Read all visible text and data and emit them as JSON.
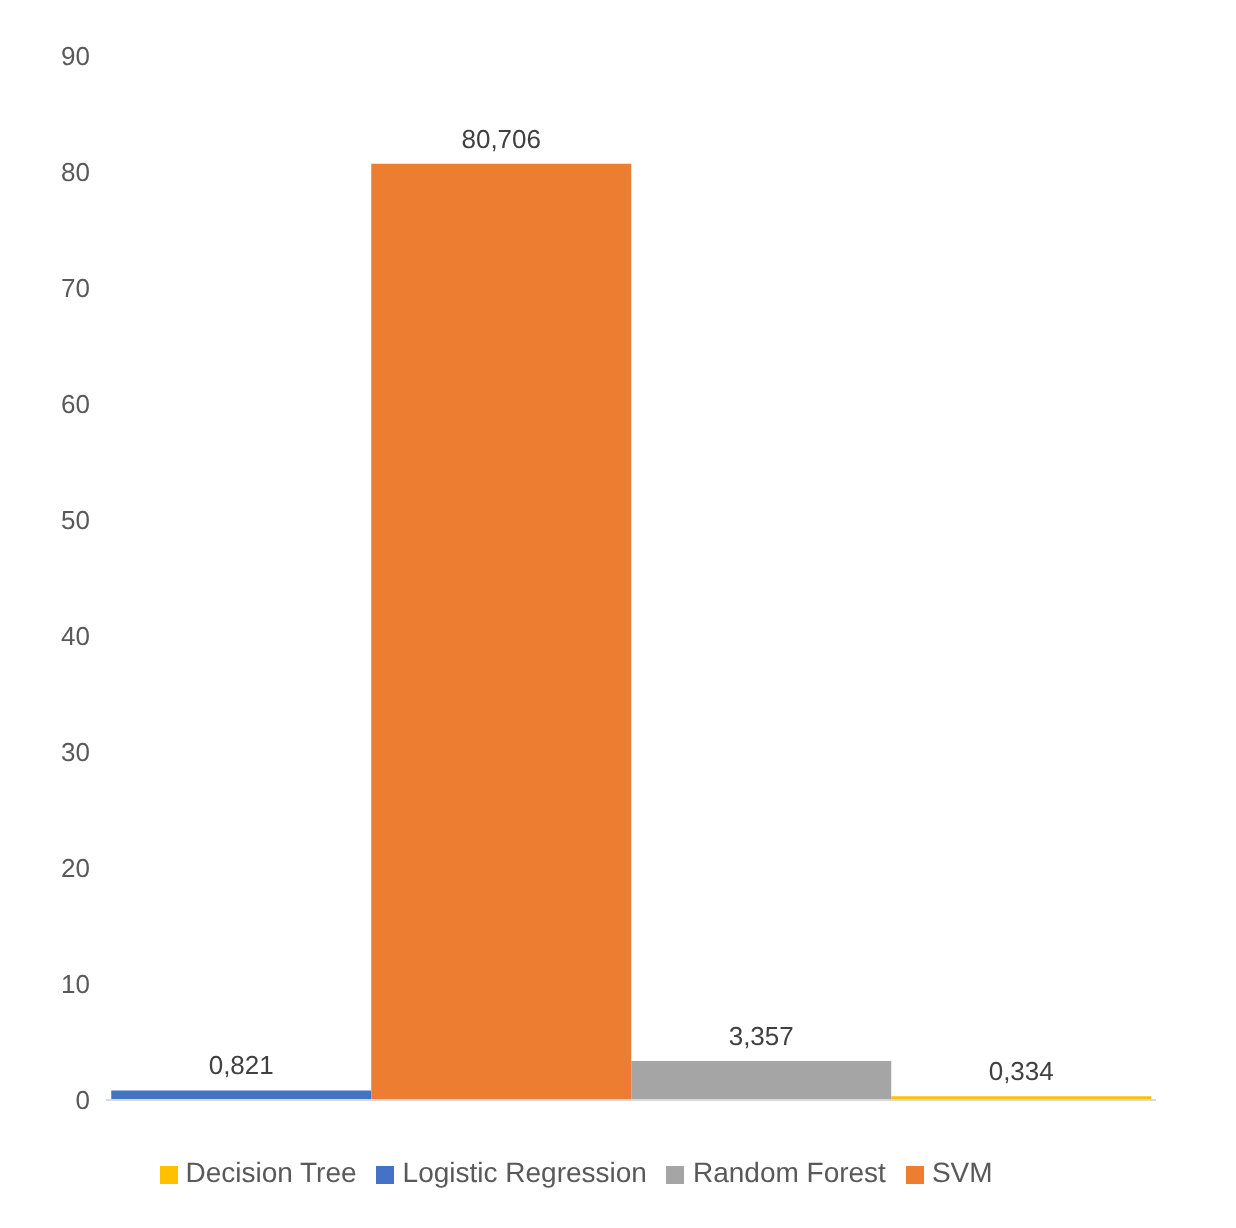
{
  "chart_data": {
    "type": "bar",
    "categories": [
      null
    ],
    "series": [
      {
        "name": "Logistic Regression",
        "color": "#4472c4",
        "values": [
          0.821
        ],
        "value_labels": [
          "0,821"
        ]
      },
      {
        "name": "SVM",
        "color": "#ed7d31",
        "values": [
          80.706
        ],
        "value_labels": [
          "80,706"
        ]
      },
      {
        "name": "Random Forest",
        "color": "#a5a5a5",
        "values": [
          3.357
        ],
        "value_labels": [
          "3,357"
        ]
      },
      {
        "name": "Decision Tree",
        "color": "#ffc000",
        "values": [
          0.334
        ],
        "value_labels": [
          "0,334"
        ]
      }
    ],
    "ylim": [
      0,
      90
    ],
    "yticks": [
      0,
      10,
      20,
      30,
      40,
      50,
      60,
      70,
      80,
      90
    ],
    "grid": false,
    "legend": "bottom"
  }
}
